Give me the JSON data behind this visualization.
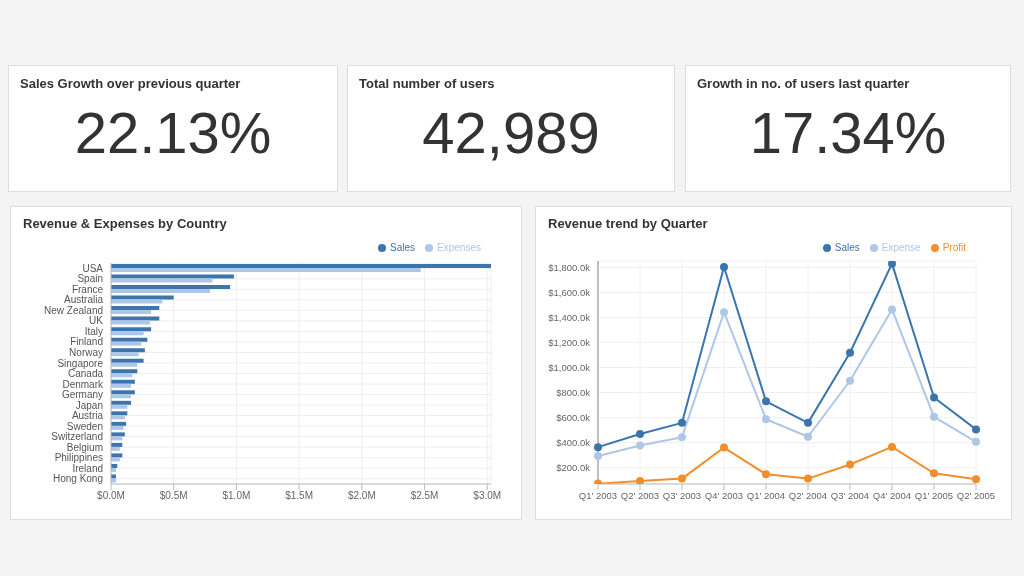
{
  "chart_data": [
    {
      "type": "other",
      "title": "Sales Growth over previous quarter",
      "annotations": [
        "22.13%"
      ]
    },
    {
      "type": "other",
      "title": "Total number of users",
      "annotations": [
        "42,989"
      ]
    },
    {
      "type": "other",
      "title": "Growth in no. of users last quarter",
      "annotations": [
        "17.34%"
      ]
    },
    {
      "type": "bar",
      "title": "Revenue & Expenses by Country",
      "orientation": "horizontal",
      "legend": "top right",
      "grid": true,
      "categories": [
        "USA",
        "Spain",
        "France",
        "Australia",
        "New Zealand",
        "UK",
        "Italy",
        "Finland",
        "Norway",
        "Singapore",
        "Canada",
        "Denmark",
        "Germany",
        "Japan",
        "Austria",
        "Sweden",
        "Switzerland",
        "Belgium",
        "Philippines",
        "Ireland",
        "Hong Kong"
      ],
      "series": [
        {
          "name": "Sales",
          "color": "#3a75ad",
          "values": [
            3.03,
            0.98,
            0.95,
            0.5,
            0.385,
            0.385,
            0.32,
            0.29,
            0.27,
            0.26,
            0.21,
            0.19,
            0.19,
            0.16,
            0.13,
            0.12,
            0.11,
            0.09,
            0.09,
            0.05,
            0.04
          ]
        },
        {
          "name": "Expenses",
          "color": "#aec7e8",
          "values": [
            2.47,
            0.81,
            0.79,
            0.41,
            0.32,
            0.31,
            0.26,
            0.24,
            0.22,
            0.21,
            0.17,
            0.16,
            0.16,
            0.13,
            0.11,
            0.1,
            0.09,
            0.07,
            0.07,
            0.04,
            0.04
          ]
        }
      ],
      "xlim": [
        0,
        3.03
      ],
      "xticks": [
        {
          "value": 0,
          "label": "$0.0M"
        },
        {
          "value": 0.5,
          "label": "$0.5M"
        },
        {
          "value": 1,
          "label": "$1.0M"
        },
        {
          "value": 1.5,
          "label": "$1.5M"
        },
        {
          "value": 2,
          "label": "$2.0M"
        },
        {
          "value": 2.5,
          "label": "$2.5M"
        },
        {
          "value": 3,
          "label": "$3.0M"
        }
      ]
    },
    {
      "type": "line",
      "title": "Revenue trend by Quarter",
      "legend": "top right",
      "grid": true,
      "marker": "circle",
      "categories": [
        "Q1' 2003",
        "Q2' 2003",
        "Q3' 2003",
        "Q4' 2003",
        "Q1' 2004",
        "Q2' 2004",
        "Q3' 2004",
        "Q4' 2004",
        "Q1' 2005",
        "Q2' 2005"
      ],
      "series": [
        {
          "name": "Sales",
          "color": "#3a75ad",
          "values": [
            364,
            469,
            558,
            1802,
            730,
            558,
            1118,
            1829,
            760,
            506
          ]
        },
        {
          "name": "Expense",
          "color": "#aec7e8",
          "values": [
            294,
            377,
            444,
            1441,
            587,
            447,
            894,
            1463,
            606,
            407
          ]
        },
        {
          "name": "Profit",
          "color": "#f28e2b",
          "values": [
            73,
            94,
            113,
            361,
            148,
            113,
            226,
            366,
            156,
            108
          ]
        }
      ],
      "ylim": [
        70,
        1850
      ],
      "yticks": [
        {
          "value": 200,
          "label": "$200.0k"
        },
        {
          "value": 400,
          "label": "$400.0k"
        },
        {
          "value": 600,
          "label": "$600.0k"
        },
        {
          "value": 800,
          "label": "$800.0k"
        },
        {
          "value": 1000,
          "label": "$1,000.0k"
        },
        {
          "value": 1200,
          "label": "$1,200.0k"
        },
        {
          "value": 1400,
          "label": "$1,400.0k"
        },
        {
          "value": 1600,
          "label": "$1,600.0k"
        },
        {
          "value": 1800,
          "label": "$1,800.0k"
        }
      ]
    }
  ]
}
